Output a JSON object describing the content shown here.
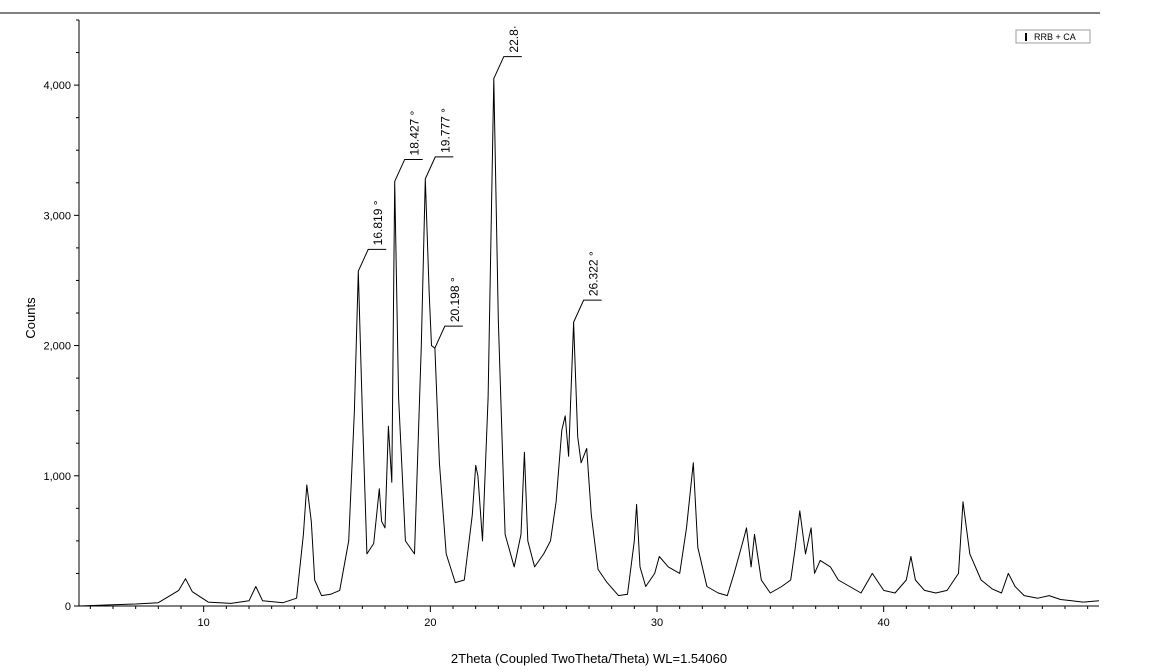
{
  "chart_data": {
    "type": "line",
    "xlabel": "2Theta (Coupled TwoTheta/Theta) WL=1.54060",
    "ylabel": "Counts",
    "xlim": [
      4.5,
      49.5
    ],
    "ylim": [
      0,
      4500
    ],
    "x_ticks": [
      10,
      20,
      30,
      40
    ],
    "x_tick_labels": [
      "10",
      "20",
      "30",
      "40"
    ],
    "y_ticks": [
      0,
      1000,
      2000,
      3000,
      4000
    ],
    "y_tick_labels": [
      "0",
      "1,000",
      "2,000",
      "3,000",
      "4,000"
    ],
    "legend": {
      "position": "top-right",
      "entries": [
        "RRB + CA"
      ]
    },
    "grid": false,
    "series": [
      {
        "name": "RRB + CA",
        "color": "#000000",
        "x": [
          4.5,
          6,
          7,
          8,
          8.9,
          9.2,
          9.5,
          10.2,
          11.2,
          12.0,
          12.3,
          12.6,
          13.5,
          14.1,
          14.4,
          14.55,
          14.75,
          14.9,
          15.2,
          15.6,
          16.0,
          16.4,
          16.65,
          16.82,
          17.0,
          17.2,
          17.5,
          17.75,
          17.85,
          18.0,
          18.15,
          18.3,
          18.43,
          18.6,
          18.9,
          19.3,
          19.6,
          19.78,
          19.95,
          20.05,
          20.2,
          20.4,
          20.7,
          21.1,
          21.5,
          21.85,
          22.0,
          22.1,
          22.3,
          22.55,
          22.8,
          23.0,
          23.3,
          23.7,
          24.0,
          24.15,
          24.3,
          24.6,
          25.0,
          25.3,
          25.55,
          25.8,
          25.95,
          26.1,
          26.32,
          26.5,
          26.65,
          26.9,
          27.1,
          27.4,
          27.8,
          28.3,
          28.7,
          29.0,
          29.1,
          29.25,
          29.5,
          29.9,
          30.1,
          30.5,
          31.0,
          31.3,
          31.6,
          31.8,
          32.2,
          32.7,
          33.1,
          33.4,
          33.8,
          33.95,
          34.15,
          34.3,
          34.6,
          35.0,
          35.5,
          35.9,
          36.1,
          36.3,
          36.55,
          36.8,
          36.95,
          37.2,
          37.65,
          38.0,
          38.5,
          39.0,
          39.5,
          40.0,
          40.5,
          41.0,
          41.2,
          41.4,
          41.8,
          42.3,
          42.8,
          43.3,
          43.5,
          43.8,
          44.3,
          44.8,
          45.2,
          45.5,
          45.8,
          46.2,
          46.8,
          47.3,
          47.8,
          48.3,
          48.8,
          49.5
        ],
        "y": [
          0,
          10,
          15,
          25,
          120,
          210,
          110,
          30,
          20,
          40,
          150,
          40,
          25,
          60,
          550,
          930,
          650,
          200,
          80,
          90,
          120,
          500,
          1500,
          2570,
          1500,
          400,
          480,
          900,
          650,
          600,
          1380,
          950,
          3260,
          1600,
          500,
          400,
          2000,
          3280,
          2400,
          2000,
          1980,
          1100,
          400,
          180,
          200,
          700,
          1080,
          1000,
          500,
          1600,
          4050,
          2200,
          550,
          300,
          550,
          1180,
          500,
          300,
          400,
          500,
          800,
          1350,
          1460,
          1150,
          2180,
          1300,
          1100,
          1210,
          700,
          280,
          180,
          80,
          90,
          500,
          780,
          300,
          150,
          250,
          380,
          300,
          250,
          600,
          1100,
          450,
          150,
          100,
          80,
          250,
          500,
          600,
          300,
          550,
          200,
          100,
          150,
          200,
          450,
          730,
          400,
          600,
          250,
          350,
          300,
          200,
          150,
          100,
          250,
          120,
          100,
          200,
          380,
          200,
          120,
          100,
          120,
          250,
          800,
          400,
          200,
          130,
          100,
          250,
          150,
          80,
          60,
          80,
          50,
          40,
          30,
          40
        ]
      }
    ],
    "annotations": [
      {
        "x": 16.819,
        "y": 2570,
        "label": "16.819 °"
      },
      {
        "x": 18.427,
        "y": 3260,
        "label": "18.427 °"
      },
      {
        "x": 19.777,
        "y": 3280,
        "label": "19.777 °"
      },
      {
        "x": 20.198,
        "y": 1980,
        "label": "20.198 °"
      },
      {
        "x": 22.8,
        "y": 4050,
        "label": "22.8·"
      },
      {
        "x": 26.322,
        "y": 2180,
        "label": "26.322 °"
      }
    ]
  }
}
